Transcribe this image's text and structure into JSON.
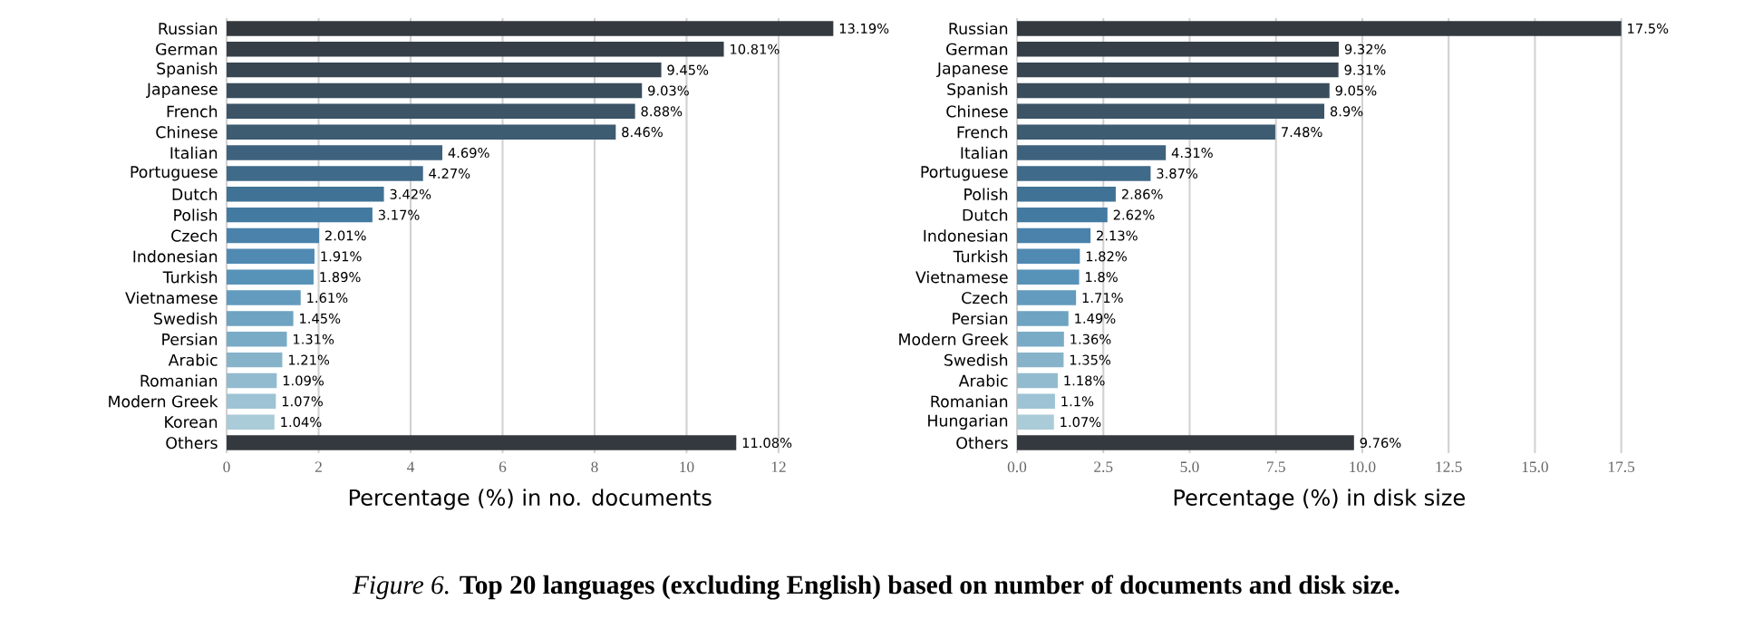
{
  "chart_data": [
    {
      "type": "bar",
      "orientation": "horizontal",
      "xlabel": "Percentage (%) in no. documents",
      "categories": [
        "Russian",
        "German",
        "Spanish",
        "Japanese",
        "French",
        "Chinese",
        "Italian",
        "Portuguese",
        "Dutch",
        "Polish",
        "Czech",
        "Indonesian",
        "Turkish",
        "Vietnamese",
        "Swedish",
        "Persian",
        "Arabic",
        "Romanian",
        "Modern Greek",
        "Korean",
        "Others"
      ],
      "values": [
        13.19,
        10.81,
        9.45,
        9.03,
        8.88,
        8.46,
        4.69,
        4.27,
        3.42,
        3.17,
        2.01,
        1.91,
        1.89,
        1.61,
        1.45,
        1.31,
        1.21,
        1.09,
        1.07,
        1.04,
        11.08
      ],
      "value_labels": [
        "13.19%",
        "10.81%",
        "9.45%",
        "9.03%",
        "8.88%",
        "8.46%",
        "4.69%",
        "4.27%",
        "3.42%",
        "3.17%",
        "2.01%",
        "1.91%",
        "1.89%",
        "1.61%",
        "1.45%",
        "1.31%",
        "1.21%",
        "1.09%",
        "1.07%",
        "1.04%",
        "11.08%"
      ],
      "colors": [
        "#33393e",
        "#363f47",
        "#384652",
        "#3a4d5c",
        "#3c5466",
        "#3d5b71",
        "#3e627d",
        "#3f6a89",
        "#407295",
        "#437aa2",
        "#4a82ab",
        "#5089b2",
        "#5792b8",
        "#629bbd",
        "#6ea3c1",
        "#7aabc6",
        "#86b3ca",
        "#92bbcf",
        "#9ec3d4",
        "#aacbd8",
        "#33393e"
      ],
      "xlim": [
        0,
        13.19
      ],
      "xticks": [
        0,
        2,
        4,
        6,
        8,
        10,
        12
      ],
      "grid": "x",
      "annotations": [
        "*Figure 6.* **Top 20 languages (excluding English) based on number of documents and disk size.**"
      ]
    },
    {
      "type": "bar",
      "orientation": "horizontal",
      "xlabel": "Percentage (%) in disk size",
      "categories": [
        "Russian",
        "German",
        "Japanese",
        "Spanish",
        "Chinese",
        "French",
        "Italian",
        "Portuguese",
        "Polish",
        "Dutch",
        "Indonesian",
        "Turkish",
        "Vietnamese",
        "Czech",
        "Persian",
        "Modern Greek",
        "Swedish",
        "Arabic",
        "Romanian",
        "Hungarian",
        "Others"
      ],
      "values": [
        17.5,
        9.32,
        9.31,
        9.05,
        8.9,
        7.48,
        4.31,
        3.87,
        2.86,
        2.62,
        2.13,
        1.82,
        1.8,
        1.71,
        1.49,
        1.36,
        1.35,
        1.18,
        1.1,
        1.07,
        9.76
      ],
      "value_labels": [
        "17.5%",
        "9.32%",
        "9.31%",
        "9.05%",
        "8.9%",
        "7.48%",
        "4.31%",
        "3.87%",
        "2.86%",
        "2.62%",
        "2.13%",
        "1.82%",
        "1.8%",
        "1.71%",
        "1.49%",
        "1.36%",
        "1.35%",
        "1.18%",
        "1.1%",
        "1.07%",
        "9.76%"
      ],
      "colors": [
        "#33393e",
        "#363f47",
        "#384652",
        "#3a4d5c",
        "#3c5466",
        "#3d5b71",
        "#3e627d",
        "#3f6a89",
        "#407295",
        "#437aa2",
        "#4a82ab",
        "#5089b2",
        "#5792b8",
        "#629bbd",
        "#6ea3c1",
        "#7aabc6",
        "#86b3ca",
        "#92bbcf",
        "#9ec3d4",
        "#aacbd8",
        "#33393e"
      ],
      "xlim": [
        0,
        17.5
      ],
      "xticks": [
        {
          "value": 0,
          "label": "0.0"
        },
        {
          "value": 2.5,
          "label": "2.5"
        },
        {
          "value": 5,
          "label": "5.0"
        },
        {
          "value": 7.5,
          "label": "7.5"
        },
        {
          "value": 10,
          "label": "10.0"
        },
        {
          "value": 12.5,
          "label": "12.5"
        },
        {
          "value": 15,
          "label": "15.0"
        },
        {
          "value": 17.5,
          "label": "17.5"
        }
      ],
      "grid": "x"
    }
  ]
}
